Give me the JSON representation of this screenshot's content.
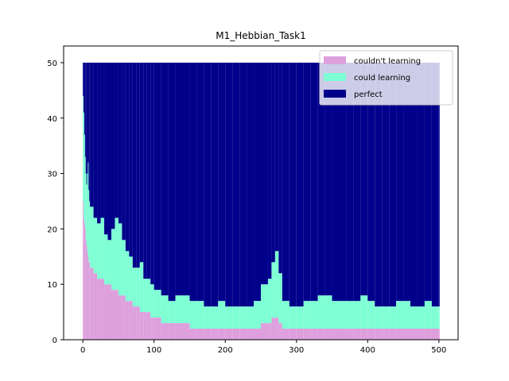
{
  "chart_data": {
    "type": "bar",
    "stacked": true,
    "title": "M1_Hebbian_Task1",
    "xlabel": "",
    "ylabel": "",
    "xlim": [
      -27,
      527
    ],
    "ylim": [
      0,
      53
    ],
    "xticks": [
      0,
      100,
      200,
      300,
      400,
      500
    ],
    "yticks": [
      0,
      10,
      20,
      30,
      40,
      50
    ],
    "total": 50,
    "grid": false,
    "legend_position": "top-right",
    "series": [
      {
        "name": "couldn't learning",
        "color": "#dda0dd"
      },
      {
        "name": "could learning",
        "color": "#7fffd4"
      },
      {
        "name": "perfect",
        "color": "#00008b"
      }
    ],
    "x": [
      0,
      1,
      2,
      3,
      4,
      5,
      6,
      7,
      8,
      9,
      10,
      15,
      20,
      25,
      30,
      35,
      40,
      45,
      50,
      55,
      60,
      65,
      70,
      75,
      80,
      85,
      90,
      95,
      100,
      110,
      120,
      130,
      140,
      150,
      160,
      170,
      180,
      190,
      200,
      210,
      220,
      230,
      240,
      250,
      260,
      265,
      270,
      275,
      280,
      290,
      300,
      310,
      320,
      330,
      340,
      350,
      360,
      370,
      380,
      390,
      400,
      410,
      420,
      430,
      440,
      450,
      460,
      470,
      480,
      490,
      500
    ],
    "couldnt_learning": [
      25,
      22,
      21,
      20,
      18,
      17,
      16,
      15,
      14,
      14,
      13,
      12,
      11,
      11,
      10,
      10,
      9,
      9,
      8,
      8,
      7,
      7,
      6,
      6,
      5,
      5,
      5,
      4,
      4,
      3,
      3,
      3,
      3,
      2,
      2,
      2,
      2,
      2,
      2,
      2,
      2,
      2,
      2,
      3,
      3,
      4,
      4,
      3,
      2,
      2,
      2,
      2,
      2,
      2,
      2,
      2,
      2,
      2,
      2,
      2,
      2,
      2,
      2,
      2,
      2,
      2,
      2,
      2,
      2,
      2,
      2
    ],
    "could_learning": [
      44,
      41,
      37,
      33,
      30,
      28,
      30,
      32,
      27,
      25,
      24,
      22,
      21,
      22,
      19,
      18,
      20,
      22,
      21,
      18,
      16,
      15,
      13,
      13,
      14,
      11,
      11,
      10,
      9,
      8,
      7,
      8,
      8,
      7,
      7,
      6,
      6,
      7,
      6,
      6,
      6,
      6,
      7,
      10,
      11,
      14,
      16,
      12,
      7,
      6,
      6,
      7,
      7,
      8,
      8,
      7,
      7,
      7,
      7,
      8,
      7,
      6,
      6,
      6,
      7,
      7,
      6,
      6,
      7,
      6,
      6
    ]
  }
}
